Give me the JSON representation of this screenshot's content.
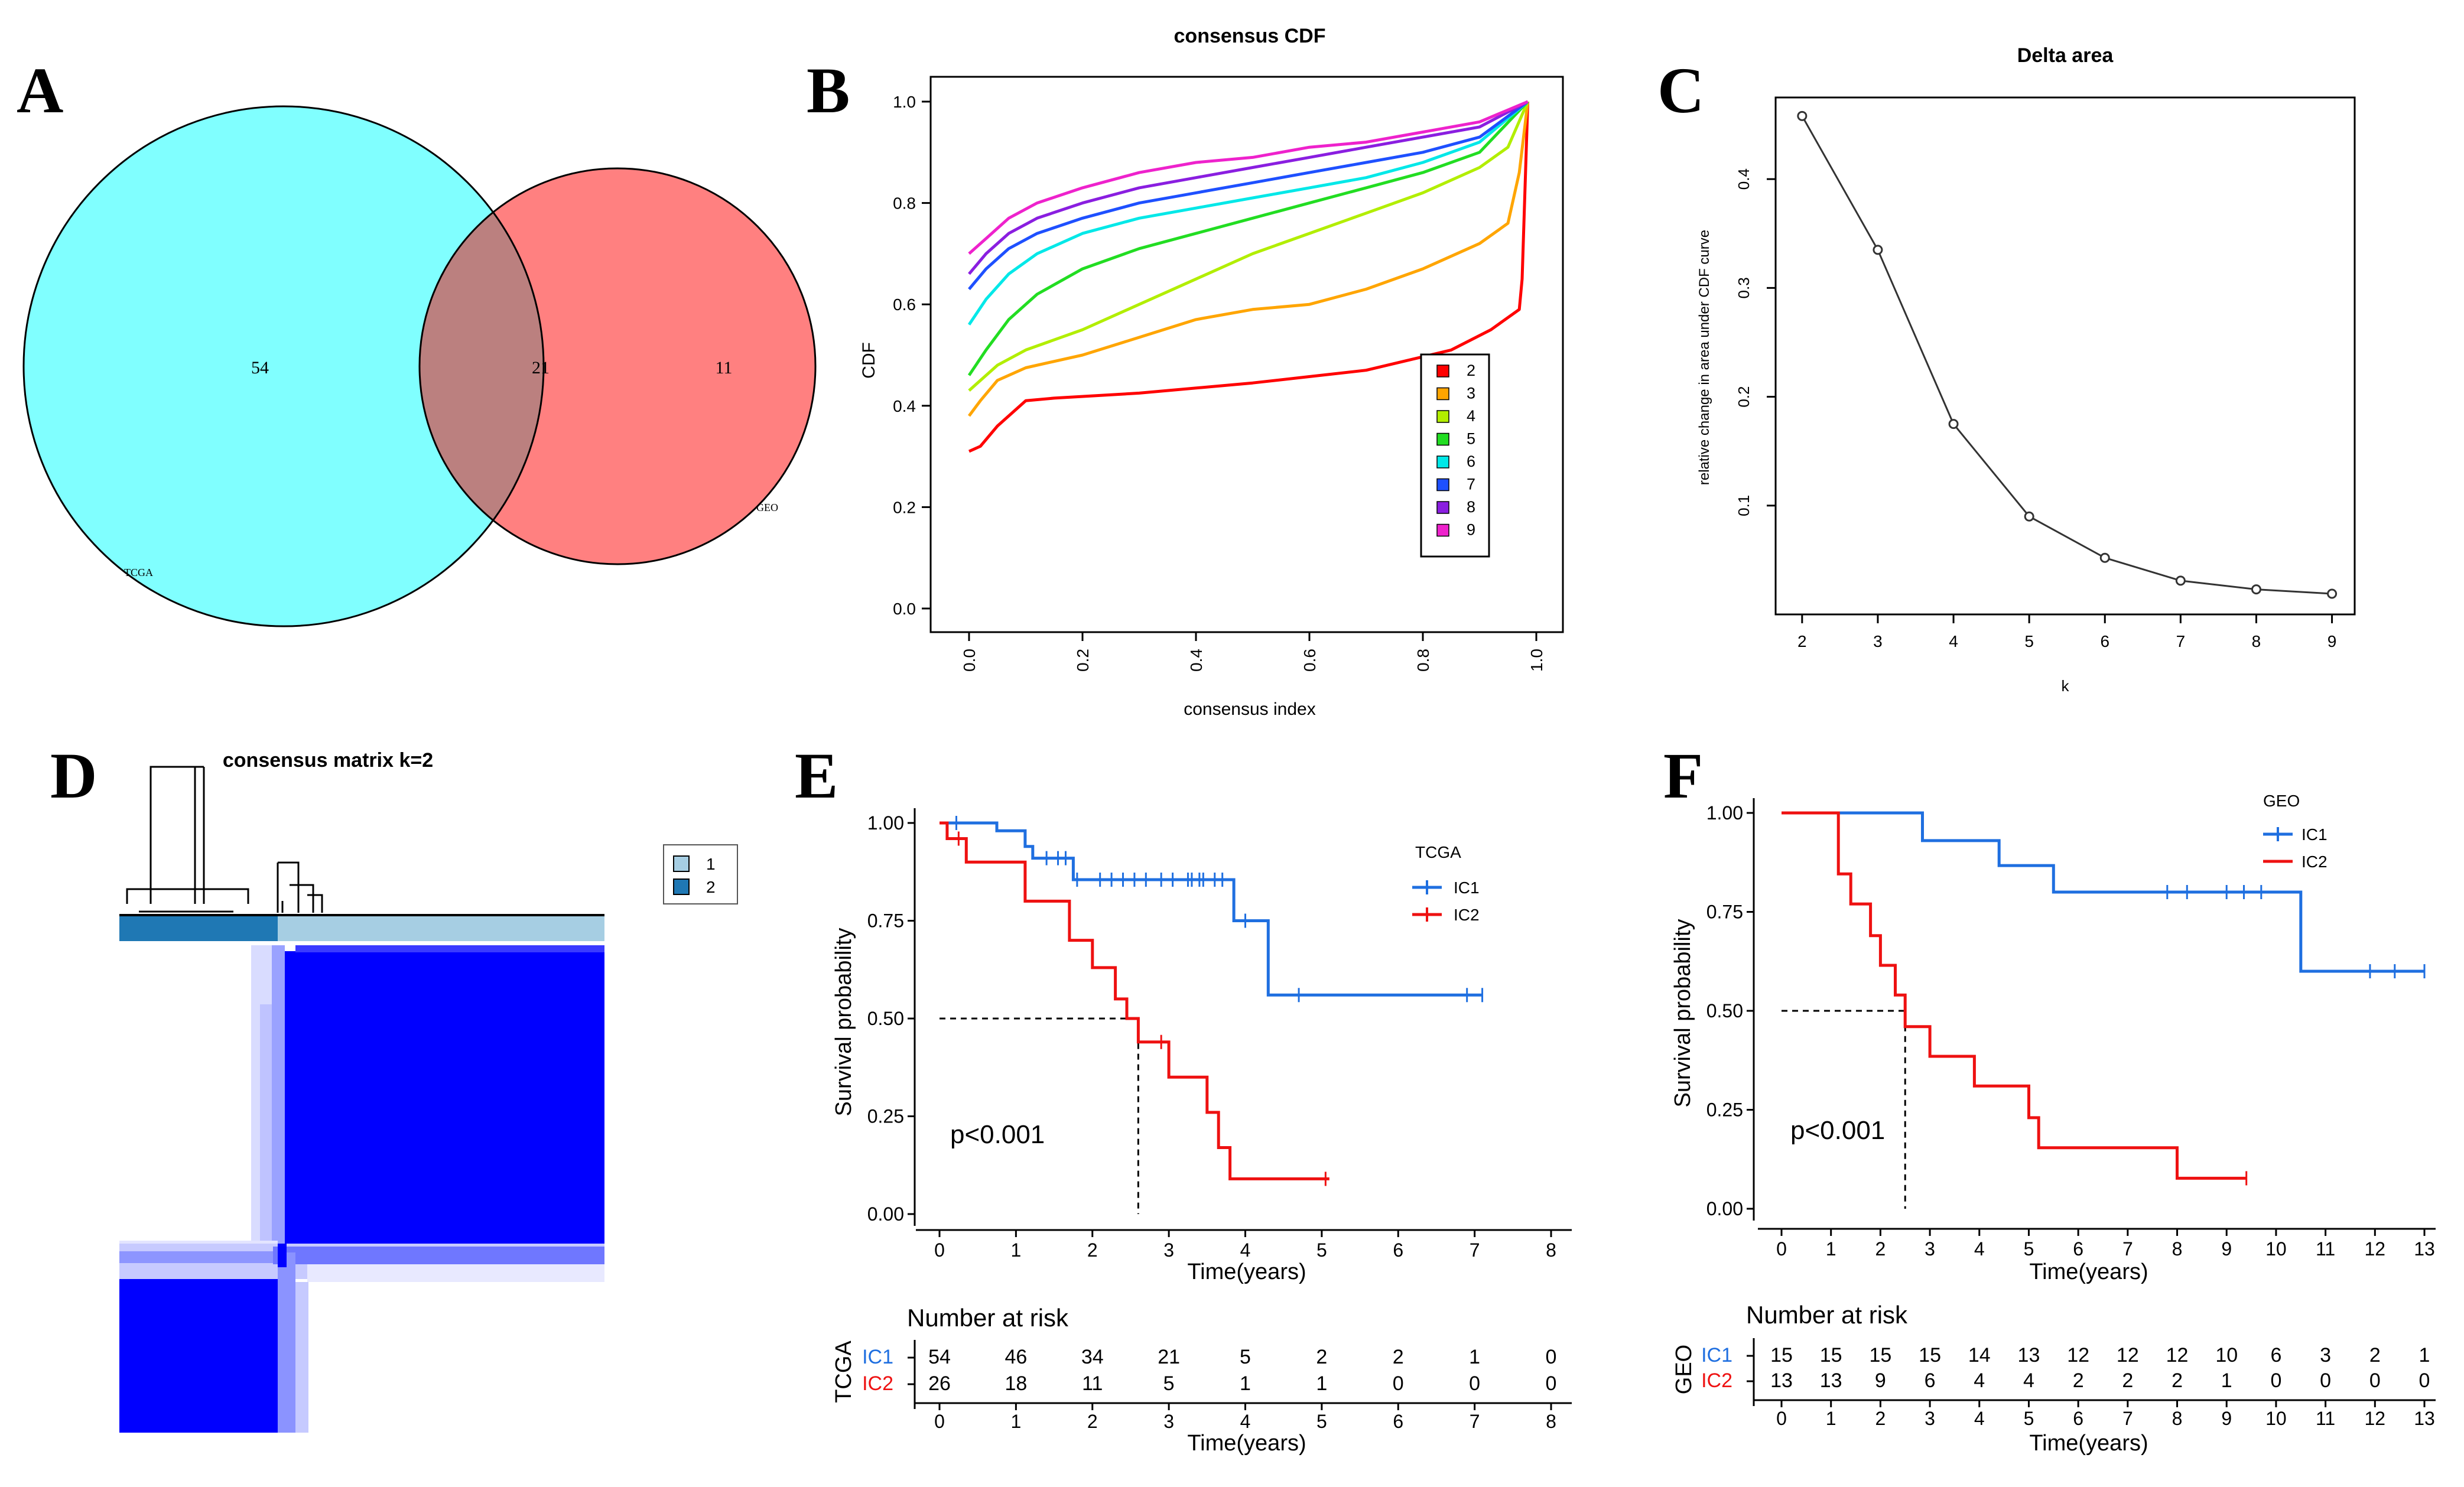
{
  "panel_labels": [
    "A",
    "B",
    "C",
    "D",
    "E",
    "F"
  ],
  "chart_data": [
    {
      "panel": "A",
      "type": "venn",
      "sets": [
        {
          "name": "TCGA",
          "color": "#80ffff"
        },
        {
          "name": "GEO",
          "color": "#ff8080"
        }
      ],
      "regions": {
        "tcga_only": "54",
        "overlap": "21",
        "geo_only": "11"
      },
      "overlap_color": "#bb807f"
    },
    {
      "panel": "B",
      "type": "line",
      "title": "consensus CDF",
      "xlabel": "consensus index",
      "ylabel": "CDF",
      "xlim": [
        0,
        1
      ],
      "ylim": [
        0,
        1
      ],
      "xticks": [
        "0.0",
        "0.2",
        "0.4",
        "0.6",
        "0.8",
        "1.0"
      ],
      "yticks": [
        "0.0",
        "0.2",
        "0.4",
        "0.6",
        "0.8",
        "1.0"
      ],
      "legend": {
        "position": "bottom-right"
      },
      "series": [
        {
          "name": "2",
          "color": "#ff0000",
          "points": [
            [
              0.0,
              0.31
            ],
            [
              0.02,
              0.32
            ],
            [
              0.05,
              0.36
            ],
            [
              0.1,
              0.41
            ],
            [
              0.15,
              0.415
            ],
            [
              0.3,
              0.425
            ],
            [
              0.5,
              0.445
            ],
            [
              0.7,
              0.47
            ],
            [
              0.85,
              0.51
            ],
            [
              0.92,
              0.55
            ],
            [
              0.97,
              0.59
            ],
            [
              0.975,
              0.65
            ],
            [
              0.985,
              1.0
            ]
          ]
        },
        {
          "name": "3",
          "color": "#ffa500",
          "points": [
            [
              0.0,
              0.38
            ],
            [
              0.02,
              0.41
            ],
            [
              0.05,
              0.45
            ],
            [
              0.1,
              0.475
            ],
            [
              0.2,
              0.5
            ],
            [
              0.3,
              0.535
            ],
            [
              0.4,
              0.57
            ],
            [
              0.5,
              0.59
            ],
            [
              0.6,
              0.6
            ],
            [
              0.7,
              0.63
            ],
            [
              0.8,
              0.67
            ],
            [
              0.9,
              0.72
            ],
            [
              0.95,
              0.76
            ],
            [
              0.97,
              0.86
            ],
            [
              0.985,
              1.0
            ]
          ]
        },
        {
          "name": "4",
          "color": "#b2ee00",
          "points": [
            [
              0.0,
              0.43
            ],
            [
              0.05,
              0.48
            ],
            [
              0.1,
              0.51
            ],
            [
              0.2,
              0.55
            ],
            [
              0.3,
              0.6
            ],
            [
              0.4,
              0.65
            ],
            [
              0.5,
              0.7
            ],
            [
              0.6,
              0.74
            ],
            [
              0.7,
              0.78
            ],
            [
              0.8,
              0.82
            ],
            [
              0.9,
              0.87
            ],
            [
              0.95,
              0.91
            ],
            [
              0.985,
              1.0
            ]
          ]
        },
        {
          "name": "5",
          "color": "#22dd22",
          "points": [
            [
              0.0,
              0.46
            ],
            [
              0.03,
              0.51
            ],
            [
              0.07,
              0.57
            ],
            [
              0.12,
              0.62
            ],
            [
              0.2,
              0.67
            ],
            [
              0.3,
              0.71
            ],
            [
              0.4,
              0.74
            ],
            [
              0.5,
              0.77
            ],
            [
              0.6,
              0.8
            ],
            [
              0.7,
              0.83
            ],
            [
              0.8,
              0.86
            ],
            [
              0.9,
              0.9
            ],
            [
              0.985,
              1.0
            ]
          ]
        },
        {
          "name": "6",
          "color": "#00e8e8",
          "points": [
            [
              0.0,
              0.56
            ],
            [
              0.03,
              0.61
            ],
            [
              0.07,
              0.66
            ],
            [
              0.12,
              0.7
            ],
            [
              0.2,
              0.74
            ],
            [
              0.3,
              0.77
            ],
            [
              0.4,
              0.79
            ],
            [
              0.5,
              0.81
            ],
            [
              0.6,
              0.83
            ],
            [
              0.7,
              0.85
            ],
            [
              0.8,
              0.88
            ],
            [
              0.9,
              0.92
            ],
            [
              0.985,
              1.0
            ]
          ]
        },
        {
          "name": "7",
          "color": "#1e50ff",
          "points": [
            [
              0.0,
              0.63
            ],
            [
              0.03,
              0.67
            ],
            [
              0.07,
              0.71
            ],
            [
              0.12,
              0.74
            ],
            [
              0.2,
              0.77
            ],
            [
              0.3,
              0.8
            ],
            [
              0.4,
              0.82
            ],
            [
              0.5,
              0.84
            ],
            [
              0.6,
              0.86
            ],
            [
              0.7,
              0.88
            ],
            [
              0.8,
              0.9
            ],
            [
              0.9,
              0.93
            ],
            [
              0.985,
              1.0
            ]
          ]
        },
        {
          "name": "8",
          "color": "#8a1ee0",
          "points": [
            [
              0.0,
              0.66
            ],
            [
              0.03,
              0.7
            ],
            [
              0.07,
              0.74
            ],
            [
              0.12,
              0.77
            ],
            [
              0.2,
              0.8
            ],
            [
              0.3,
              0.83
            ],
            [
              0.4,
              0.85
            ],
            [
              0.5,
              0.87
            ],
            [
              0.6,
              0.89
            ],
            [
              0.7,
              0.91
            ],
            [
              0.8,
              0.93
            ],
            [
              0.9,
              0.95
            ],
            [
              0.985,
              1.0
            ]
          ]
        },
        {
          "name": "9",
          "color": "#ee22cc",
          "points": [
            [
              0.0,
              0.7
            ],
            [
              0.03,
              0.73
            ],
            [
              0.07,
              0.77
            ],
            [
              0.12,
              0.8
            ],
            [
              0.2,
              0.83
            ],
            [
              0.3,
              0.86
            ],
            [
              0.4,
              0.88
            ],
            [
              0.5,
              0.89
            ],
            [
              0.6,
              0.91
            ],
            [
              0.7,
              0.92
            ],
            [
              0.8,
              0.94
            ],
            [
              0.9,
              0.96
            ],
            [
              0.985,
              1.0
            ]
          ]
        }
      ]
    },
    {
      "panel": "C",
      "type": "line",
      "title": "Delta area",
      "xlabel": "k",
      "ylabel": "relative change in area under CDF curve",
      "xlim": [
        1.65,
        9.3
      ],
      "ylim": [
        0.0,
        0.475
      ],
      "xticks": [
        "2",
        "3",
        "4",
        "5",
        "6",
        "7",
        "8",
        "9"
      ],
      "yticks": [
        "0.1",
        "0.2",
        "0.3",
        "0.4"
      ],
      "x": [
        2,
        3,
        4,
        5,
        6,
        7,
        8,
        9
      ],
      "values": [
        0.458,
        0.335,
        0.175,
        0.09,
        0.052,
        0.031,
        0.023,
        0.019
      ]
    },
    {
      "panel": "D",
      "type": "heatmap",
      "title": "consensus matrix k=2",
      "legend": [
        "1",
        "2"
      ],
      "cluster_colors": [
        "#a6cee3",
        "#1f78b4"
      ],
      "cluster_fraction": [
        0.68,
        0.32
      ],
      "matrix_color": "#0000ff"
    },
    {
      "panel": "E",
      "type": "line",
      "subtype": "kaplan-meier",
      "legend_title": "TCGA",
      "xlabel": "Time(years)",
      "ylabel": "Survival probability",
      "xlim": [
        0,
        8
      ],
      "ylim": [
        0,
        1
      ],
      "xticks": [
        "0",
        "1",
        "2",
        "3",
        "4",
        "5",
        "6",
        "7",
        "8"
      ],
      "yticks": [
        "0.00",
        "0.25",
        "0.50",
        "0.75",
        "1.00"
      ],
      "pvalue": "p<0.001",
      "median_line": {
        "y": 0.5,
        "x": 2.6
      },
      "series": [
        {
          "name": "IC1",
          "color": "#1f6fe0",
          "steps": [
            [
              0,
              1.0
            ],
            [
              0.75,
              0.98
            ],
            [
              1.12,
              0.94
            ],
            [
              1.22,
              0.91
            ],
            [
              1.75,
              0.855
            ],
            [
              3.85,
              0.75
            ],
            [
              4.3,
              0.56
            ],
            [
              7.1,
              0.56
            ]
          ],
          "censor": [
            0.22,
            1.4,
            1.55,
            1.65,
            1.8,
            2.1,
            2.25,
            2.4,
            2.55,
            2.7,
            2.9,
            3.05,
            3.25,
            3.3,
            3.4,
            3.45,
            3.6,
            3.7,
            4.0,
            4.7,
            6.9,
            7.1
          ]
        },
        {
          "name": "IC2",
          "color": "#ee1111",
          "steps": [
            [
              0,
              1.0
            ],
            [
              0.1,
              0.96
            ],
            [
              0.35,
              0.9
            ],
            [
              1.12,
              0.8
            ],
            [
              1.7,
              0.7
            ],
            [
              2.0,
              0.63
            ],
            [
              2.3,
              0.55
            ],
            [
              2.45,
              0.5
            ],
            [
              2.6,
              0.44
            ],
            [
              3.0,
              0.35
            ],
            [
              3.5,
              0.26
            ],
            [
              3.65,
              0.17
            ],
            [
              3.8,
              0.09
            ],
            [
              5.1,
              0.09
            ]
          ],
          "censor": [
            0.25,
            2.9,
            5.05
          ]
        }
      ],
      "risk_table": {
        "title": "Number at risk",
        "strata_label": "TCGA",
        "xlabel": "Time(years)",
        "rows": [
          {
            "name": "IC1",
            "color": "#1f6fe0",
            "values": [
              "54",
              "46",
              "34",
              "21",
              "5",
              "2",
              "2",
              "1",
              "0"
            ]
          },
          {
            "name": "IC2",
            "color": "#ee1111",
            "values": [
              "26",
              "18",
              "11",
              "5",
              "1",
              "1",
              "0",
              "0",
              "0"
            ]
          }
        ]
      }
    },
    {
      "panel": "F",
      "type": "line",
      "subtype": "kaplan-meier",
      "legend_title": "GEO",
      "xlabel": "Time(years)",
      "ylabel": "Survival probability",
      "xlim": [
        0,
        13
      ],
      "ylim": [
        0,
        1
      ],
      "xticks": [
        "0",
        "1",
        "2",
        "3",
        "4",
        "5",
        "6",
        "7",
        "8",
        "9",
        "10",
        "11",
        "12",
        "13"
      ],
      "yticks": [
        "0.00",
        "0.25",
        "0.50",
        "0.75",
        "1.00"
      ],
      "pvalue": "p<0.001",
      "median_line": {
        "y": 0.5,
        "x": 2.5
      },
      "series": [
        {
          "name": "IC1",
          "color": "#1f6fe0",
          "steps": [
            [
              0,
              1.0
            ],
            [
              2.85,
              0.93
            ],
            [
              4.4,
              0.867
            ],
            [
              5.5,
              0.8
            ],
            [
              10.5,
              0.6
            ],
            [
              13,
              0.6
            ]
          ],
          "censor": [
            7.8,
            8.2,
            9.0,
            9.35,
            9.7,
            11.9,
            12.4,
            13.0
          ]
        },
        {
          "name": "IC2",
          "color": "#ee1111",
          "steps": [
            [
              0,
              1.0
            ],
            [
              1.15,
              0.846
            ],
            [
              1.4,
              0.77
            ],
            [
              1.8,
              0.69
            ],
            [
              2.0,
              0.615
            ],
            [
              2.3,
              0.54
            ],
            [
              2.5,
              0.46
            ],
            [
              3.0,
              0.385
            ],
            [
              3.9,
              0.31
            ],
            [
              5.0,
              0.23
            ],
            [
              5.2,
              0.154
            ],
            [
              8.0,
              0.077
            ],
            [
              9.4,
              0.077
            ]
          ],
          "censor": [
            9.4
          ]
        }
      ],
      "risk_table": {
        "title": "Number at risk",
        "strata_label": "GEO",
        "xlabel": "Time(years)",
        "rows": [
          {
            "name": "IC1",
            "color": "#1f6fe0",
            "values": [
              "15",
              "15",
              "15",
              "15",
              "14",
              "13",
              "12",
              "12",
              "12",
              "10",
              "6",
              "3",
              "2",
              "1"
            ]
          },
          {
            "name": "IC2",
            "color": "#ee1111",
            "values": [
              "13",
              "13",
              "9",
              "6",
              "4",
              "4",
              "2",
              "2",
              "2",
              "1",
              "0",
              "0",
              "0",
              "0"
            ]
          }
        ]
      }
    }
  ]
}
